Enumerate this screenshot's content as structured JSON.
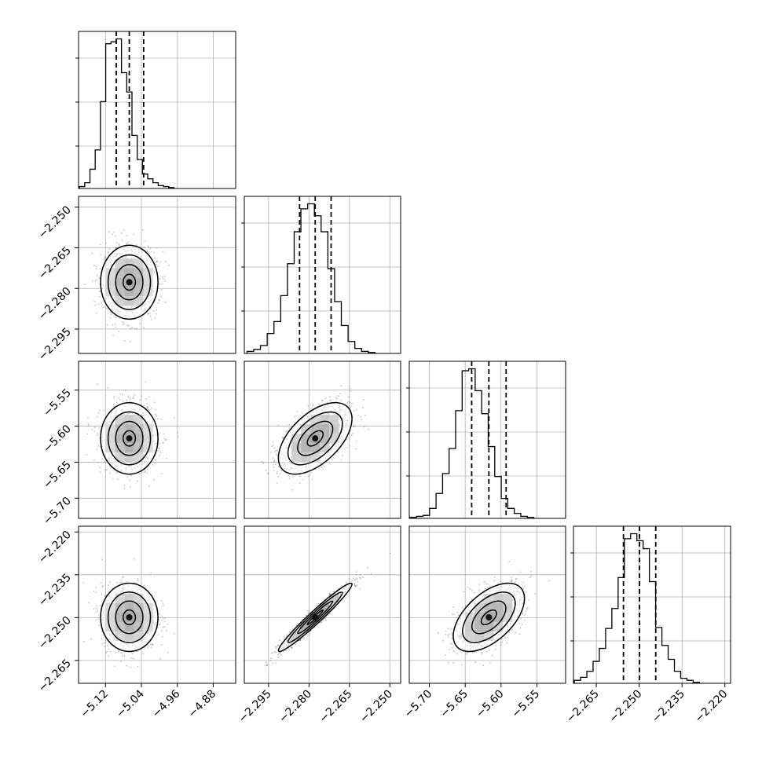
{
  "params": [
    {
      "ticks": [
        -5.12,
        -5.04,
        -4.96,
        -4.88
      ],
      "labels": [
        "−5.12",
        "−5.04",
        "−4.96",
        "−4.88"
      ]
    },
    {
      "ticks": [
        -2.295,
        -2.28,
        -2.265,
        -2.25
      ],
      "labels": [
        "−2.295",
        "−2.280",
        "−2.265",
        "−2.250"
      ]
    },
    {
      "ticks": [
        -5.7,
        -5.65,
        -5.6,
        -5.55
      ],
      "labels": [
        "−5.70",
        "−5.65",
        "−5.60",
        "−5.55"
      ]
    },
    {
      "ticks": [
        -2.265,
        -2.25,
        -2.235,
        -2.22
      ],
      "labels": [
        "−2.265",
        "−2.250",
        "−2.235",
        "−2.220"
      ]
    }
  ],
  "chart_data": {
    "type": "corner",
    "grid": true,
    "title": "",
    "dimensions": [
      {
        "range": [
          -5.18,
          -4.83
        ],
        "ticks": [
          -5.12,
          -5.04,
          -4.96,
          -4.88
        ],
        "tick_labels": [
          "−5.12",
          "−5.04",
          "−4.96",
          "−4.88"
        ],
        "quantiles": [
          -5.096,
          -5.067,
          -5.035
        ],
        "hist_bin_width": 0.0117,
        "hist_start": -5.178,
        "hist_counts": [
          2,
          6,
          20,
          40,
          90,
          150,
          152,
          155,
          120,
          100,
          55,
          30,
          15,
          10,
          6,
          3,
          2,
          1
        ]
      },
      {
        "range": [
          -2.304,
          -2.246
        ],
        "ticks": [
          -2.295,
          -2.28,
          -2.265,
          -2.25
        ],
        "tick_labels": [
          "−2.295",
          "−2.280",
          "−2.265",
          "−2.250"
        ],
        "quantiles": [
          -2.2835,
          -2.2777,
          -2.2718
        ],
        "hist_bin_width": 0.0025,
        "hist_start": -2.303,
        "hist_counts": [
          2,
          4,
          8,
          20,
          32,
          58,
          90,
          122,
          145,
          150,
          138,
          122,
          85,
          52,
          28,
          12,
          5,
          2,
          1
        ]
      },
      {
        "range": [
          -5.728,
          -5.51
        ],
        "ticks": [
          -5.7,
          -5.65,
          -5.6,
          -5.55
        ],
        "tick_labels": [
          "−5.70",
          "−5.65",
          "−5.60",
          "−5.55"
        ],
        "quantiles": [
          -5.641,
          -5.617,
          -5.593
        ],
        "hist_bin_width": 0.00909,
        "hist_start": -5.727,
        "hist_counts": [
          1,
          2,
          3,
          10,
          25,
          45,
          70,
          108,
          148,
          150,
          128,
          105,
          72,
          42,
          20,
          10,
          5,
          2,
          1
        ]
      },
      {
        "range": [
          -2.273,
          -2.218
        ],
        "ticks": [
          -2.265,
          -2.25,
          -2.235,
          -2.22
        ],
        "tick_labels": [
          "−2.265",
          "−2.250",
          "−2.235",
          "−2.220"
        ],
        "quantiles": [
          -2.2555,
          -2.2499,
          -2.2442
        ],
        "hist_bin_width": 0.00219,
        "hist_start": -2.2727,
        "hist_counts": [
          3,
          6,
          12,
          22,
          35,
          55,
          75,
          106,
          145,
          150,
          143,
          135,
          102,
          56,
          38,
          24,
          12,
          5,
          3,
          1
        ]
      }
    ],
    "pairs": [
      {
        "x": 0,
        "y": 1,
        "center": [
          -5.067,
          -2.2777
        ],
        "correlation": 0.0
      },
      {
        "x": 0,
        "y": 2,
        "center": [
          -5.067,
          -5.617
        ],
        "correlation": 0.0
      },
      {
        "x": 1,
        "y": 2,
        "center": [
          -2.2777,
          -5.617
        ],
        "correlation": 0.55
      },
      {
        "x": 0,
        "y": 3,
        "center": [
          -5.067,
          -2.2499
        ],
        "correlation": 0.0
      },
      {
        "x": 1,
        "y": 3,
        "center": [
          -2.2777,
          -2.2499
        ],
        "correlation": 0.97
      },
      {
        "x": 2,
        "y": 3,
        "center": [
          -5.617,
          -2.2499
        ],
        "correlation": 0.55
      }
    ]
  }
}
